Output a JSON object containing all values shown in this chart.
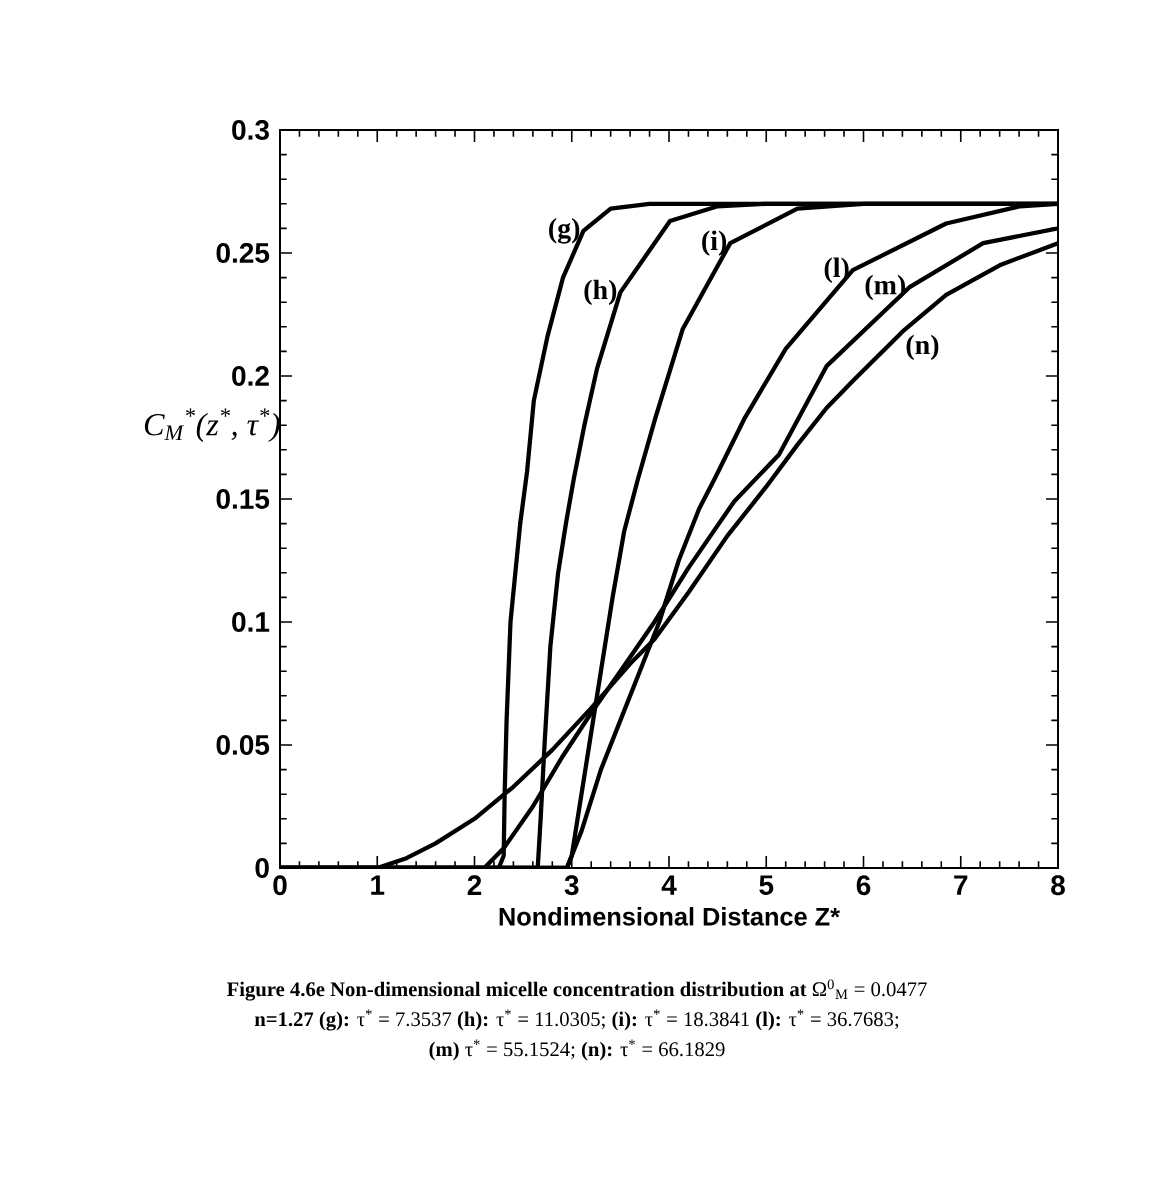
{
  "chart_data": {
    "type": "line",
    "xlabel": "Nondimensional Distance Z*",
    "ylabel": "C$_{M}$$^{*}$(z$^{*}$, τ$^{*}$)",
    "xlim": [
      0,
      8
    ],
    "ylim": [
      0,
      0.3
    ],
    "xticks": [
      0,
      1,
      2,
      3,
      4,
      5,
      6,
      7,
      8
    ],
    "yticks": [
      0,
      0.05,
      0.1,
      0.15,
      0.2,
      0.25,
      0.3
    ],
    "line_style": "solid",
    "series": [
      {
        "name": "(g)",
        "color": "#000000",
        "x": [
          0,
          2.25,
          2.3,
          2.31,
          2.33,
          2.37,
          2.47,
          2.54,
          2.61,
          2.75,
          2.91,
          3.12,
          3.4,
          3.8,
          8
        ],
        "values": [
          0,
          0,
          0.005,
          0.03,
          0.06,
          0.1,
          0.14,
          0.161,
          0.19,
          0.216,
          0.24,
          0.259,
          0.268,
          0.27,
          0.27
        ]
      },
      {
        "name": "(h)",
        "color": "#000000",
        "x": [
          0,
          2.65,
          2.68,
          2.72,
          2.78,
          2.86,
          2.94,
          3.02,
          3.13,
          3.26,
          3.5,
          4.01,
          4.5,
          5,
          8
        ],
        "values": [
          0,
          0,
          0.02,
          0.05,
          0.09,
          0.12,
          0.14,
          0.158,
          0.18,
          0.203,
          0.234,
          0.263,
          0.269,
          0.27,
          0.27
        ]
      },
      {
        "name": "(i)",
        "color": "#000000",
        "x": [
          0,
          2.95,
          3.0,
          3.1,
          3.2,
          3.3,
          3.42,
          3.54,
          3.68,
          3.86,
          4.14,
          4.63,
          5.32,
          6,
          8
        ],
        "values": [
          0,
          0,
          0.005,
          0.03,
          0.055,
          0.08,
          0.11,
          0.137,
          0.158,
          0.183,
          0.219,
          0.254,
          0.268,
          0.27,
          0.27
        ]
      },
      {
        "name": "(l)",
        "color": "#000000",
        "x": [
          0,
          2.95,
          3.1,
          3.3,
          3.5,
          3.7,
          3.9,
          4.1,
          4.31,
          4.48,
          4.78,
          5.2,
          5.89,
          6.85,
          7.61,
          8
        ],
        "values": [
          0,
          0,
          0.015,
          0.04,
          0.06,
          0.08,
          0.1,
          0.125,
          0.146,
          0.159,
          0.183,
          0.211,
          0.243,
          0.262,
          0.269,
          0.27
        ]
      },
      {
        "name": "(m)",
        "color": "#000000",
        "x": [
          0,
          2.1,
          2.3,
          2.6,
          2.9,
          3.2,
          3.5,
          3.85,
          4.2,
          4.67,
          5.13,
          5.62,
          6.47,
          7.23,
          8
        ],
        "values": [
          0,
          0,
          0.008,
          0.025,
          0.045,
          0.063,
          0.08,
          0.1,
          0.122,
          0.149,
          0.168,
          0.204,
          0.236,
          0.254,
          0.26
        ]
      },
      {
        "name": "(n)",
        "color": "#000000",
        "x": [
          0,
          1.0,
          1.3,
          1.6,
          2.0,
          2.4,
          2.8,
          3.2,
          3.6,
          3.85,
          4.2,
          4.6,
          5.0,
          5.32,
          5.62,
          5.89,
          6.4,
          6.85,
          7.4,
          8
        ],
        "values": [
          0,
          0,
          0.004,
          0.01,
          0.02,
          0.033,
          0.048,
          0.065,
          0.083,
          0.093,
          0.112,
          0.135,
          0.155,
          0.172,
          0.187,
          0.198,
          0.218,
          0.233,
          0.245,
          0.254
        ]
      }
    ],
    "annotations": [
      "**Figure 4.6e Non-dimensional micelle concentration distribution at** Ω$^{0}$$_{M}$ = 0.0477",
      "**n=1.27 (g):** τ$^{*}$ = 7.3537 **(h):** τ$^{*}$ = 11.0305; **(i):** τ$^{*}$ = 18.3841 **(l):** τ$^{*}$ = 36.7683;",
      "**(m)** τ$^{*}$ = 55.1524; **(n):** τ$^{*}$ = 66.1829"
    ]
  }
}
